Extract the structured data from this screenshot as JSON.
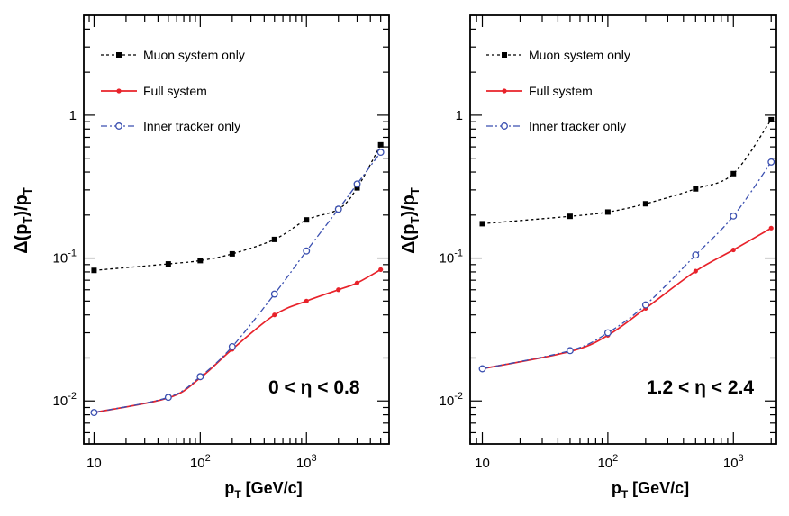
{
  "chart_data": [
    {
      "type": "line",
      "title": "",
      "xlabel": {
        "base": "p",
        "sub": "T",
        "rest": " [GeV/c]"
      },
      "ylabel": {
        "pre": "Δ(p",
        "sub1": "T",
        "mid": ")/p",
        "sub2": "T"
      },
      "xscale": "log",
      "yscale": "log",
      "xlim": [
        8,
        6000
      ],
      "ylim": [
        0.005,
        5
      ],
      "xticks": [
        {
          "value": 10,
          "base": "10",
          "exp": ""
        },
        {
          "value": 100,
          "base": "10",
          "exp": "2"
        },
        {
          "value": 1000,
          "base": "10",
          "exp": "3"
        }
      ],
      "yticks": [
        {
          "value": 0.01,
          "base": "10",
          "exp": "-2"
        },
        {
          "value": 0.1,
          "base": "10",
          "exp": "-1"
        },
        {
          "value": 1,
          "base": "1",
          "exp": ""
        }
      ],
      "annotation": "0 < η < 0.8",
      "legend_position": "top-left",
      "grid": false,
      "series": [
        {
          "name": "Muon system only",
          "color": "#000000",
          "dash": "3,3",
          "marker": "square",
          "x": [
            10,
            50,
            100,
            200,
            500,
            1000,
            2000,
            3000,
            5000
          ],
          "y": [
            0.082,
            0.091,
            0.096,
            0.107,
            0.135,
            0.185,
            0.22,
            0.31,
            0.62
          ]
        },
        {
          "name": "Full system",
          "color": "#e8222a",
          "dash": "",
          "marker": "dot",
          "x": [
            10,
            50,
            100,
            200,
            500,
            1000,
            2000,
            3000,
            5000
          ],
          "y": [
            0.0083,
            0.0105,
            0.0145,
            0.023,
            0.04,
            0.05,
            0.06,
            0.067,
            0.083
          ]
        },
        {
          "name": "Inner tracker only",
          "color": "#3a4fb0",
          "dash": "7,3,2,3",
          "marker": "circle",
          "x": [
            10,
            50,
            100,
            200,
            500,
            1000,
            2000,
            3000,
            5000
          ],
          "y": [
            0.0083,
            0.0106,
            0.0148,
            0.024,
            0.056,
            0.112,
            0.22,
            0.33,
            0.55
          ]
        }
      ]
    },
    {
      "type": "line",
      "title": "",
      "xlabel": {
        "base": "p",
        "sub": "T",
        "rest": " [GeV/c]"
      },
      "ylabel": {
        "pre": "Δ(p",
        "sub1": "T",
        "mid": ")/p",
        "sub2": "T"
      },
      "xscale": "log",
      "yscale": "log",
      "xlim": [
        8,
        2200
      ],
      "ylim": [
        0.005,
        5
      ],
      "xticks": [
        {
          "value": 10,
          "base": "10",
          "exp": ""
        },
        {
          "value": 100,
          "base": "10",
          "exp": "2"
        },
        {
          "value": 1000,
          "base": "10",
          "exp": "3"
        }
      ],
      "yticks": [
        {
          "value": 0.01,
          "base": "10",
          "exp": "-2"
        },
        {
          "value": 0.1,
          "base": "10",
          "exp": "-1"
        },
        {
          "value": 1,
          "base": "1",
          "exp": ""
        }
      ],
      "annotation": "1.2 < η < 2.4",
      "legend_position": "top-left",
      "grid": false,
      "series": [
        {
          "name": "Muon system only",
          "color": "#000000",
          "dash": "3,3",
          "marker": "square",
          "x": [
            10,
            50,
            100,
            200,
            500,
            1000,
            2000
          ],
          "y": [
            0.174,
            0.196,
            0.21,
            0.24,
            0.305,
            0.39,
            0.93
          ]
        },
        {
          "name": "Full system",
          "color": "#e8222a",
          "dash": "",
          "marker": "dot",
          "x": [
            10,
            50,
            100,
            200,
            500,
            1000,
            2000
          ],
          "y": [
            0.0168,
            0.0222,
            0.0288,
            0.0445,
            0.081,
            0.114,
            0.162
          ]
        },
        {
          "name": "Inner tracker only",
          "color": "#3a4fb0",
          "dash": "7,3,2,3",
          "marker": "circle",
          "x": [
            10,
            50,
            100,
            200,
            500,
            1000,
            2000
          ],
          "y": [
            0.0168,
            0.0225,
            0.03,
            0.047,
            0.105,
            0.197,
            0.47
          ]
        }
      ]
    }
  ]
}
